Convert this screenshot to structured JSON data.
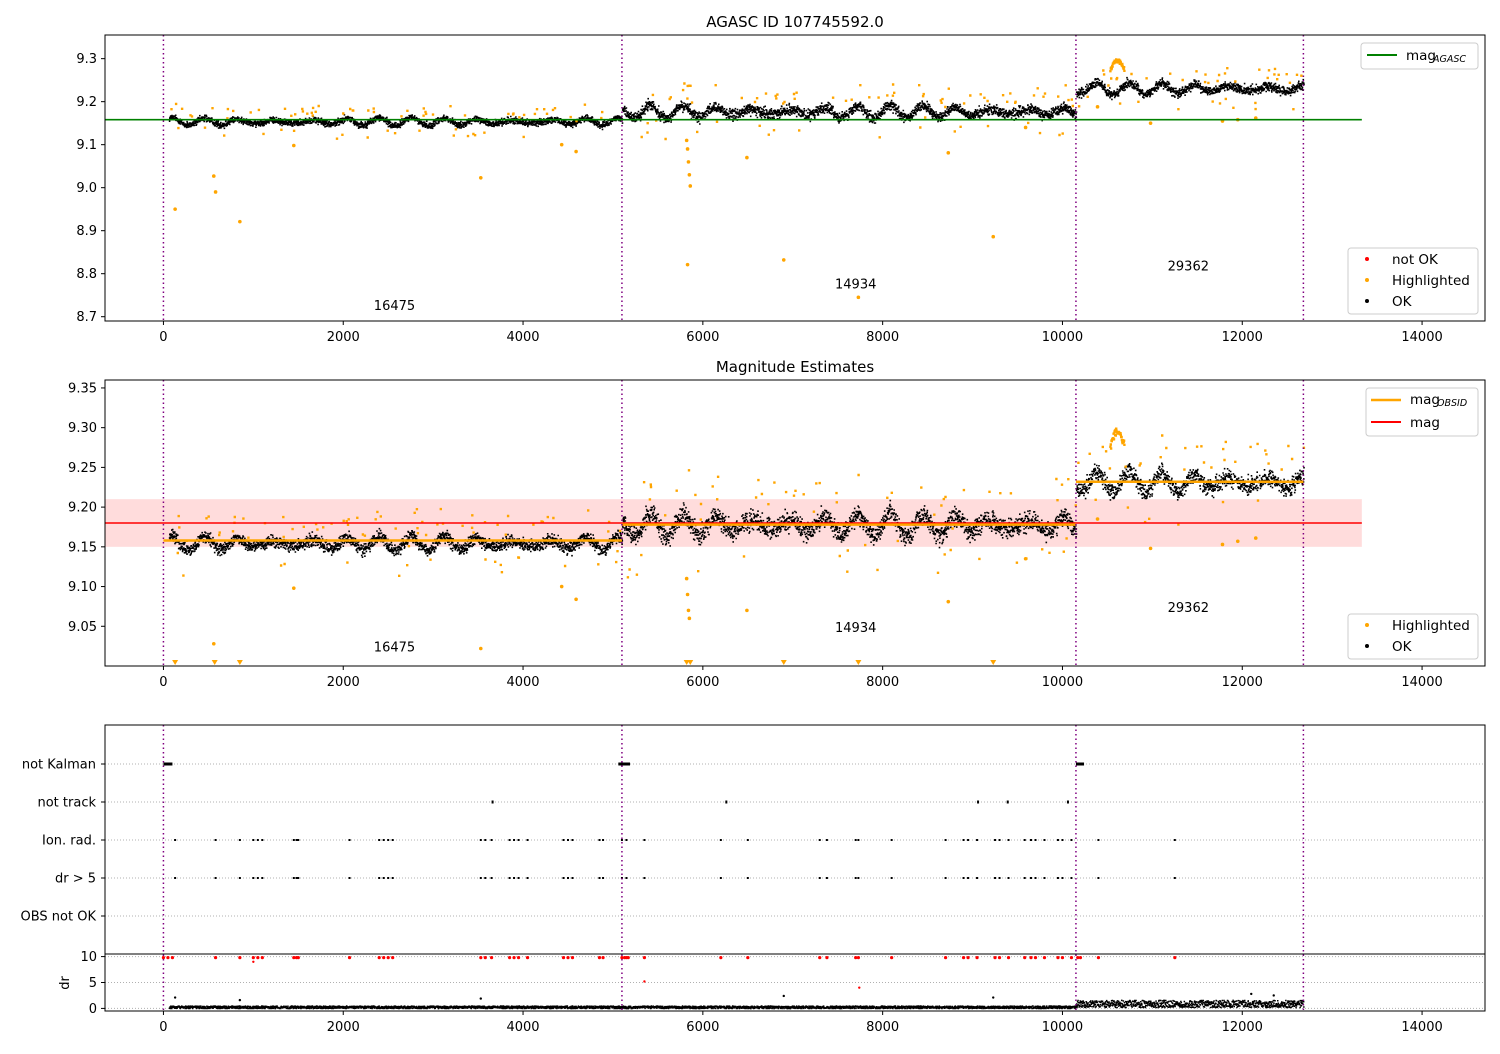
{
  "chart_data": [
    {
      "type": "scatter",
      "title": "AGASC ID 107745592.0",
      "xlim": [
        -650,
        14700
      ],
      "ylim": [
        8.69,
        9.355
      ],
      "x_ticks": [
        0,
        2000,
        4000,
        6000,
        8000,
        10000,
        12000,
        14000
      ],
      "y_ticks": [
        8.7,
        8.8,
        8.9,
        9.0,
        9.1,
        9.2,
        9.3
      ],
      "x_tick_labels": [
        "0",
        "2000",
        "4000",
        "6000",
        "8000",
        "10000",
        "12000",
        "14000"
      ],
      "y_tick_labels": [
        "8.7",
        "8.8",
        "8.9",
        "9.0",
        "9.1",
        "9.2",
        "9.3"
      ],
      "legend_lines": [
        {
          "label": "mag",
          "sub": "AGASC",
          "color": "#008000"
        }
      ],
      "legend_points": [
        {
          "label": "not OK",
          "color": "#ff0000"
        },
        {
          "label": "Highlighted",
          "color": "#ffa500"
        },
        {
          "label": "OK",
          "color": "#000000"
        }
      ],
      "obsid_boundaries": [
        0,
        5100,
        10150,
        12680
      ],
      "obsid_labels": [
        {
          "text": "16475",
          "x": 2570,
          "y": 8.715
        },
        {
          "text": "14934",
          "x": 7700,
          "y": 8.765
        },
        {
          "text": "29362",
          "x": 11400,
          "y": 8.808
        }
      ],
      "reference_lines": [
        {
          "name": "mag_AGASC",
          "y": 9.158,
          "x_from": -650,
          "x_to": 13330,
          "color": "#008000"
        }
      ],
      "segments": [
        {
          "x_from": 60,
          "x_to": 5100,
          "level": 9.155,
          "amplitude": 0.025
        },
        {
          "x_from": 5100,
          "x_to": 10150,
          "level": 9.178,
          "amplitude": 0.04
        },
        {
          "x_from": 10150,
          "x_to": 12680,
          "level": 9.232,
          "amplitude": 0.035
        }
      ],
      "highlighted_outliers": [
        {
          "x": 130,
          "y": 8.95
        },
        {
          "x": 560,
          "y": 9.027
        },
        {
          "x": 580,
          "y": 8.99
        },
        {
          "x": 850,
          "y": 8.921
        },
        {
          "x": 1450,
          "y": 9.098
        },
        {
          "x": 3530,
          "y": 9.023
        },
        {
          "x": 4430,
          "y": 9.1
        },
        {
          "x": 4590,
          "y": 9.084
        },
        {
          "x": 5820,
          "y": 9.11
        },
        {
          "x": 5830,
          "y": 9.09
        },
        {
          "x": 5840,
          "y": 9.06
        },
        {
          "x": 5850,
          "y": 9.03
        },
        {
          "x": 5860,
          "y": 9.004
        },
        {
          "x": 5830,
          "y": 8.821
        },
        {
          "x": 6490,
          "y": 9.07
        },
        {
          "x": 6900,
          "y": 8.832
        },
        {
          "x": 7730,
          "y": 8.745
        },
        {
          "x": 8730,
          "y": 9.081
        },
        {
          "x": 9230,
          "y": 8.886
        },
        {
          "x": 9590,
          "y": 9.14
        },
        {
          "x": 10390,
          "y": 9.188
        },
        {
          "x": 10980,
          "y": 9.15
        },
        {
          "x": 11780,
          "y": 9.155
        },
        {
          "x": 11950,
          "y": 9.158
        },
        {
          "x": 12150,
          "y": 9.162
        }
      ]
    },
    {
      "type": "scatter",
      "title": "Magnitude Estimates",
      "xlim": [
        -650,
        14700
      ],
      "ylim": [
        9.0,
        9.36
      ],
      "x_ticks": [
        0,
        2000,
        4000,
        6000,
        8000,
        10000,
        12000,
        14000
      ],
      "y_ticks": [
        9.05,
        9.1,
        9.15,
        9.2,
        9.25,
        9.3,
        9.35
      ],
      "x_tick_labels": [
        "0",
        "2000",
        "4000",
        "6000",
        "8000",
        "10000",
        "12000",
        "14000"
      ],
      "y_tick_labels": [
        "9.05",
        "9.10",
        "9.15",
        "9.20",
        "9.25",
        "9.30",
        "9.35"
      ],
      "legend_lines": [
        {
          "label": "mag",
          "sub": "OBSID",
          "color": "#ffa500"
        },
        {
          "label": "mag",
          "sub": "",
          "color": "#ff0000"
        }
      ],
      "legend_points": [
        {
          "label": "Highlighted",
          "color": "#ffa500"
        },
        {
          "label": "OK",
          "color": "#000000"
        }
      ],
      "obsid_boundaries": [
        0,
        5100,
        10150,
        12680
      ],
      "obsid_labels": [
        {
          "text": "16475",
          "x": 2570,
          "y": 9.018
        },
        {
          "text": "14934",
          "x": 7700,
          "y": 9.043
        },
        {
          "text": "29362",
          "x": 11400,
          "y": 9.068
        }
      ],
      "reference_lines": [
        {
          "name": "mag",
          "y": 9.18,
          "x_from": -650,
          "x_to": 13330,
          "color": "#ff0000"
        }
      ],
      "mag_band": {
        "y_from": 9.15,
        "y_to": 9.21,
        "x_from": -650,
        "x_to": 13330
      },
      "obsid_mags": [
        {
          "x_from": 0,
          "x_to": 5100,
          "y": 9.158
        },
        {
          "x_from": 5100,
          "x_to": 10150,
          "y": 9.178
        },
        {
          "x_from": 10150,
          "x_to": 12680,
          "y": 9.232
        }
      ],
      "segments": [
        {
          "x_from": 60,
          "x_to": 5100,
          "level": 9.155,
          "amplitude": 0.025
        },
        {
          "x_from": 5100,
          "x_to": 10150,
          "level": 9.178,
          "amplitude": 0.04
        },
        {
          "x_from": 10150,
          "x_to": 12680,
          "level": 9.232,
          "amplitude": 0.035
        }
      ],
      "highlighted_outliers": [
        {
          "x": 560,
          "y": 9.028
        },
        {
          "x": 1450,
          "y": 9.098
        },
        {
          "x": 3530,
          "y": 9.022
        },
        {
          "x": 4430,
          "y": 9.1
        },
        {
          "x": 4590,
          "y": 9.084
        },
        {
          "x": 5820,
          "y": 9.11
        },
        {
          "x": 5830,
          "y": 9.09
        },
        {
          "x": 5840,
          "y": 9.07
        },
        {
          "x": 5850,
          "y": 9.06
        },
        {
          "x": 6490,
          "y": 9.07
        },
        {
          "x": 8730,
          "y": 9.081
        },
        {
          "x": 9590,
          "y": 9.135
        },
        {
          "x": 10390,
          "y": 9.185
        },
        {
          "x": 10980,
          "y": 9.148
        },
        {
          "x": 11780,
          "y": 9.153
        },
        {
          "x": 11950,
          "y": 9.157
        },
        {
          "x": 12150,
          "y": 9.161
        }
      ],
      "below_axis_markers": [
        130,
        570,
        850,
        5820,
        5860,
        6900,
        7730,
        9230
      ]
    },
    {
      "type": "scatter",
      "title": "",
      "xlim": [
        -650,
        14700
      ],
      "x_ticks": [
        0,
        2000,
        4000,
        6000,
        8000,
        10000,
        12000,
        14000
      ],
      "x_tick_labels": [
        "0",
        "2000",
        "4000",
        "6000",
        "8000",
        "10000",
        "12000",
        "14000"
      ],
      "flag_rows": [
        "not Kalman",
        "not track",
        "Ion. rad.",
        "dr > 5",
        "OBS not OK"
      ],
      "obsid_boundaries": [
        0,
        5100,
        10150,
        12680
      ],
      "flags": {
        "not Kalman": [
          [
            0,
            100
          ],
          [
            5060,
            5190
          ],
          [
            10150,
            10240
          ]
        ],
        "not track": [
          [
            3650,
            3660
          ],
          [
            6250,
            6260
          ],
          [
            9050,
            9060
          ],
          [
            9380,
            9390
          ],
          [
            10050,
            10060
          ]
        ],
        "Ion. rad.": [
          130,
          580,
          850,
          1000,
          1050,
          1100,
          1450,
          1480,
          1500,
          2070,
          2400,
          2450,
          2500,
          2550,
          3530,
          3580,
          3650,
          3850,
          3900,
          3950,
          4050,
          4450,
          4500,
          4550,
          4850,
          4890,
          5100,
          5150,
          5350,
          6200,
          6500,
          7300,
          7380,
          7700,
          7730,
          8100,
          8700,
          8900,
          8950,
          9050,
          9250,
          9300,
          9400,
          9580,
          9650,
          9700,
          9800,
          9950,
          10000,
          10100,
          10400,
          11250
        ],
        "dr > 5": [
          130,
          580,
          850,
          1000,
          1050,
          1100,
          1450,
          1480,
          1500,
          2070,
          2400,
          2450,
          2500,
          2550,
          3530,
          3580,
          3650,
          3850,
          3900,
          3950,
          4050,
          4450,
          4500,
          4550,
          4850,
          4890,
          5100,
          5150,
          5350,
          6200,
          6500,
          7300,
          7380,
          7700,
          7730,
          8100,
          8700,
          8900,
          8950,
          9050,
          9250,
          9300,
          9400,
          9580,
          9650,
          9700,
          9800,
          9950,
          10000,
          10100,
          10400,
          11250
        ],
        "OBS not OK": []
      },
      "dr_panel": {
        "ylabel": "dr",
        "ylim": [
          -0.5,
          10.5
        ],
        "y_ticks": [
          0,
          5,
          10
        ],
        "y_tick_labels": [
          "0",
          "5",
          "10"
        ],
        "segments": [
          {
            "x_from": 60,
            "x_to": 5100,
            "level": 0.35
          },
          {
            "x_from": 5100,
            "x_to": 10150,
            "level": 0.35
          },
          {
            "x_from": 10150,
            "x_to": 12680,
            "level": 1.0
          }
        ],
        "not_ok_high": [
          0,
          50,
          100,
          580,
          850,
          1000,
          1050,
          1100,
          1450,
          1480,
          1500,
          2070,
          2400,
          2450,
          2500,
          2550,
          3530,
          3580,
          3650,
          3850,
          3900,
          3950,
          4050,
          4450,
          4500,
          4550,
          4850,
          4890,
          5100,
          5130,
          5150,
          5170,
          5350,
          6200,
          6500,
          7300,
          7380,
          7700,
          7730,
          8100,
          8700,
          8900,
          8950,
          9050,
          9250,
          9300,
          9400,
          9580,
          9650,
          9700,
          9800,
          9950,
          10000,
          10100,
          10170,
          10200,
          10400,
          11250
        ],
        "not_ok_mid": [
          {
            "x": 5350,
            "y": 5.2
          },
          {
            "x": 7740,
            "y": 4.0
          },
          {
            "x": 1000,
            "y": 9.0
          }
        ],
        "ok_spikes": [
          {
            "x": 130,
            "y": 2.1
          },
          {
            "x": 850,
            "y": 1.6
          },
          {
            "x": 3530,
            "y": 1.9
          },
          {
            "x": 6900,
            "y": 2.4
          },
          {
            "x": 9230,
            "y": 2.1
          },
          {
            "x": 12100,
            "y": 2.8
          },
          {
            "x": 12350,
            "y": 2.5
          }
        ]
      }
    }
  ]
}
